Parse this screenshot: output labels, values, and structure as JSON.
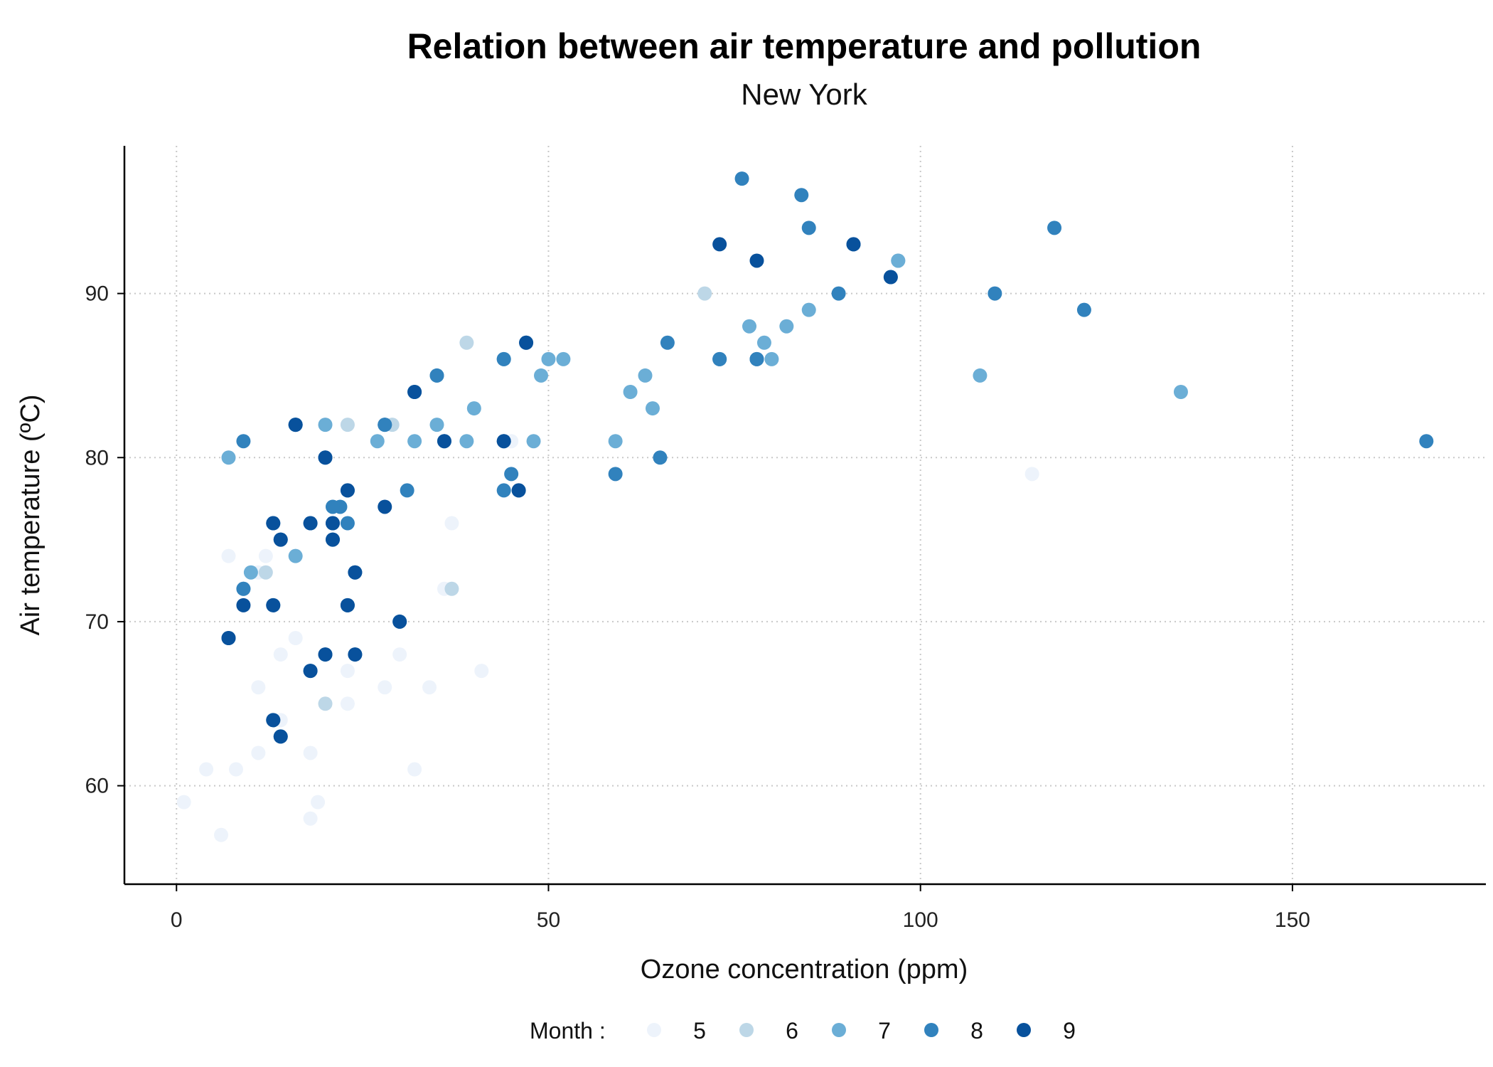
{
  "chart_data": {
    "type": "scatter",
    "title": "Relation between air temperature and pollution",
    "subtitle": "New York",
    "xlabel": "Ozone concentration (ppm)",
    "ylabel": "Air temperature (ºC)",
    "xlim": [
      -7,
      176
    ],
    "ylim": [
      54,
      99
    ],
    "xticks": [
      0,
      50,
      100,
      150
    ],
    "yticks": [
      60,
      70,
      80,
      90
    ],
    "grid": true,
    "legend": {
      "title": "Month :",
      "placement": "bottom"
    },
    "series": [
      {
        "name": "5",
        "color": "#edf3fb",
        "points": [
          [
            41,
            67
          ],
          [
            36,
            72
          ],
          [
            12,
            74
          ],
          [
            18,
            62
          ],
          [
            28,
            66
          ],
          [
            23,
            65
          ],
          [
            19,
            59
          ],
          [
            8,
            61
          ],
          [
            7,
            74
          ],
          [
            16,
            69
          ],
          [
            11,
            66
          ],
          [
            14,
            68
          ],
          [
            18,
            58
          ],
          [
            14,
            64
          ],
          [
            34,
            66
          ],
          [
            6,
            57
          ],
          [
            30,
            68
          ],
          [
            11,
            62
          ],
          [
            1,
            59
          ],
          [
            11,
            73
          ],
          [
            4,
            61
          ],
          [
            32,
            61
          ],
          [
            23,
            67
          ],
          [
            45,
            81
          ],
          [
            115,
            79
          ],
          [
            37,
            76
          ]
        ]
      },
      {
        "name": "6",
        "color": "#bdd7e7",
        "points": [
          [
            29,
            82
          ],
          [
            71,
            90
          ],
          [
            39,
            87
          ],
          [
            23,
            82
          ],
          [
            21,
            77
          ],
          [
            37,
            72
          ],
          [
            20,
            65
          ],
          [
            12,
            73
          ],
          [
            13,
            76
          ]
        ]
      },
      {
        "name": "7",
        "color": "#6baed6",
        "points": [
          [
            135,
            84
          ],
          [
            49,
            85
          ],
          [
            32,
            81
          ],
          [
            64,
            83
          ],
          [
            40,
            83
          ],
          [
            77,
            88
          ],
          [
            97,
            92
          ],
          [
            97,
            92
          ],
          [
            85,
            89
          ],
          [
            10,
            73
          ],
          [
            27,
            81
          ],
          [
            7,
            80
          ],
          [
            48,
            81
          ],
          [
            35,
            82
          ],
          [
            61,
            84
          ],
          [
            79,
            87
          ],
          [
            63,
            85
          ],
          [
            16,
            74
          ],
          [
            80,
            86
          ],
          [
            108,
            85
          ],
          [
            20,
            82
          ],
          [
            52,
            86
          ],
          [
            82,
            88
          ],
          [
            50,
            86
          ],
          [
            59,
            81
          ],
          [
            39,
            81
          ],
          [
            9,
            72
          ],
          [
            16,
            82
          ],
          [
            35,
            85
          ],
          [
            44,
            86
          ]
        ]
      },
      {
        "name": "8",
        "color": "#3182bd",
        "points": [
          [
            78,
            86
          ],
          [
            35,
            85
          ],
          [
            66,
            87
          ],
          [
            122,
            89
          ],
          [
            89,
            90
          ],
          [
            110,
            90
          ],
          [
            44,
            86
          ],
          [
            28,
            82
          ],
          [
            65,
            80
          ],
          [
            22,
            77
          ],
          [
            59,
            79
          ],
          [
            23,
            76
          ],
          [
            31,
            78
          ],
          [
            44,
            78
          ],
          [
            21,
            77
          ],
          [
            9,
            72
          ],
          [
            45,
            79
          ],
          [
            168,
            81
          ],
          [
            73,
            86
          ],
          [
            76,
            97
          ],
          [
            118,
            94
          ],
          [
            84,
            96
          ],
          [
            85,
            94
          ],
          [
            96,
            91
          ],
          [
            78,
            86
          ],
          [
            73,
            86
          ],
          [
            91,
            93
          ],
          [
            47,
            87
          ],
          [
            32,
            84
          ],
          [
            20,
            80
          ],
          [
            23,
            78
          ],
          [
            21,
            75
          ],
          [
            24,
            73
          ],
          [
            44,
            81
          ],
          [
            21,
            76
          ],
          [
            28,
            82
          ],
          [
            9,
            81
          ],
          [
            13,
            71
          ],
          [
            46,
            78
          ],
          [
            18,
            76
          ],
          [
            13,
            64
          ],
          [
            24,
            68
          ],
          [
            16,
            82
          ],
          [
            13,
            76
          ],
          [
            23,
            71
          ],
          [
            36,
            81
          ],
          [
            7,
            69
          ],
          [
            14,
            63
          ],
          [
            30,
            70
          ],
          [
            14,
            75
          ],
          [
            18,
            67
          ],
          [
            20,
            68
          ]
        ]
      },
      {
        "name": "9",
        "color": "#08519c",
        "points": [
          [
            96,
            91
          ],
          [
            78,
            92
          ],
          [
            73,
            93
          ],
          [
            91,
            93
          ],
          [
            47,
            87
          ],
          [
            32,
            84
          ],
          [
            20,
            80
          ],
          [
            23,
            78
          ],
          [
            21,
            75
          ],
          [
            24,
            73
          ],
          [
            44,
            81
          ],
          [
            21,
            76
          ],
          [
            28,
            77
          ],
          [
            9,
            71
          ],
          [
            13,
            71
          ],
          [
            46,
            78
          ],
          [
            18,
            76
          ],
          [
            13,
            64
          ],
          [
            24,
            68
          ],
          [
            16,
            82
          ],
          [
            13,
            76
          ],
          [
            23,
            71
          ],
          [
            36,
            81
          ],
          [
            7,
            69
          ],
          [
            14,
            63
          ],
          [
            30,
            70
          ],
          [
            14,
            75
          ],
          [
            18,
            67
          ],
          [
            20,
            68
          ]
        ]
      }
    ]
  }
}
